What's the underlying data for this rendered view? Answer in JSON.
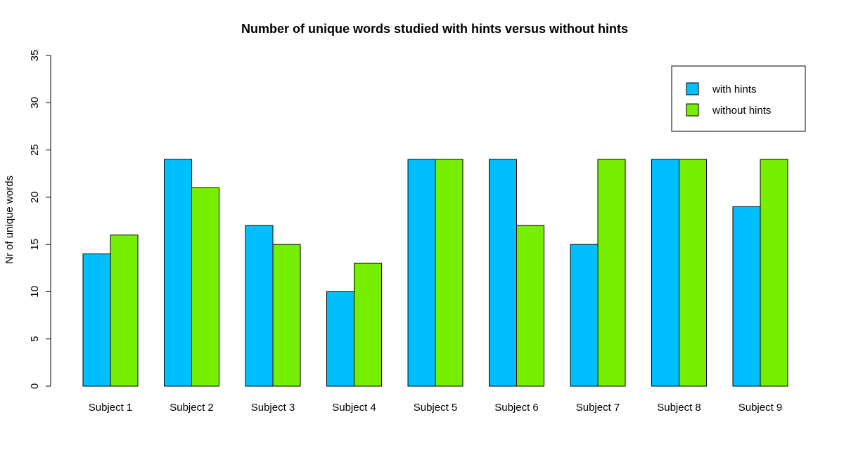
{
  "chart_data": {
    "type": "bar",
    "title": "Number of unique words studied with hints versus without hints",
    "xlabel": "",
    "ylabel": "Nr of unique words",
    "categories": [
      "Subject 1",
      "Subject 2",
      "Subject 3",
      "Subject 4",
      "Subject 5",
      "Subject 6",
      "Subject 7",
      "Subject 8",
      "Subject 9"
    ],
    "series": [
      {
        "name": "with hints",
        "color": "#00BFFF",
        "values": [
          14,
          24,
          17,
          10,
          24,
          24,
          15,
          24,
          19
        ]
      },
      {
        "name": "without hints",
        "color": "#76EE00",
        "values": [
          16,
          21,
          15,
          13,
          24,
          17,
          24,
          24,
          24
        ]
      }
    ],
    "ylim": [
      0,
      35
    ],
    "yticks": [
      0,
      5,
      10,
      15,
      20,
      25,
      30,
      35
    ],
    "grid": false,
    "legend_position": "top-right"
  }
}
